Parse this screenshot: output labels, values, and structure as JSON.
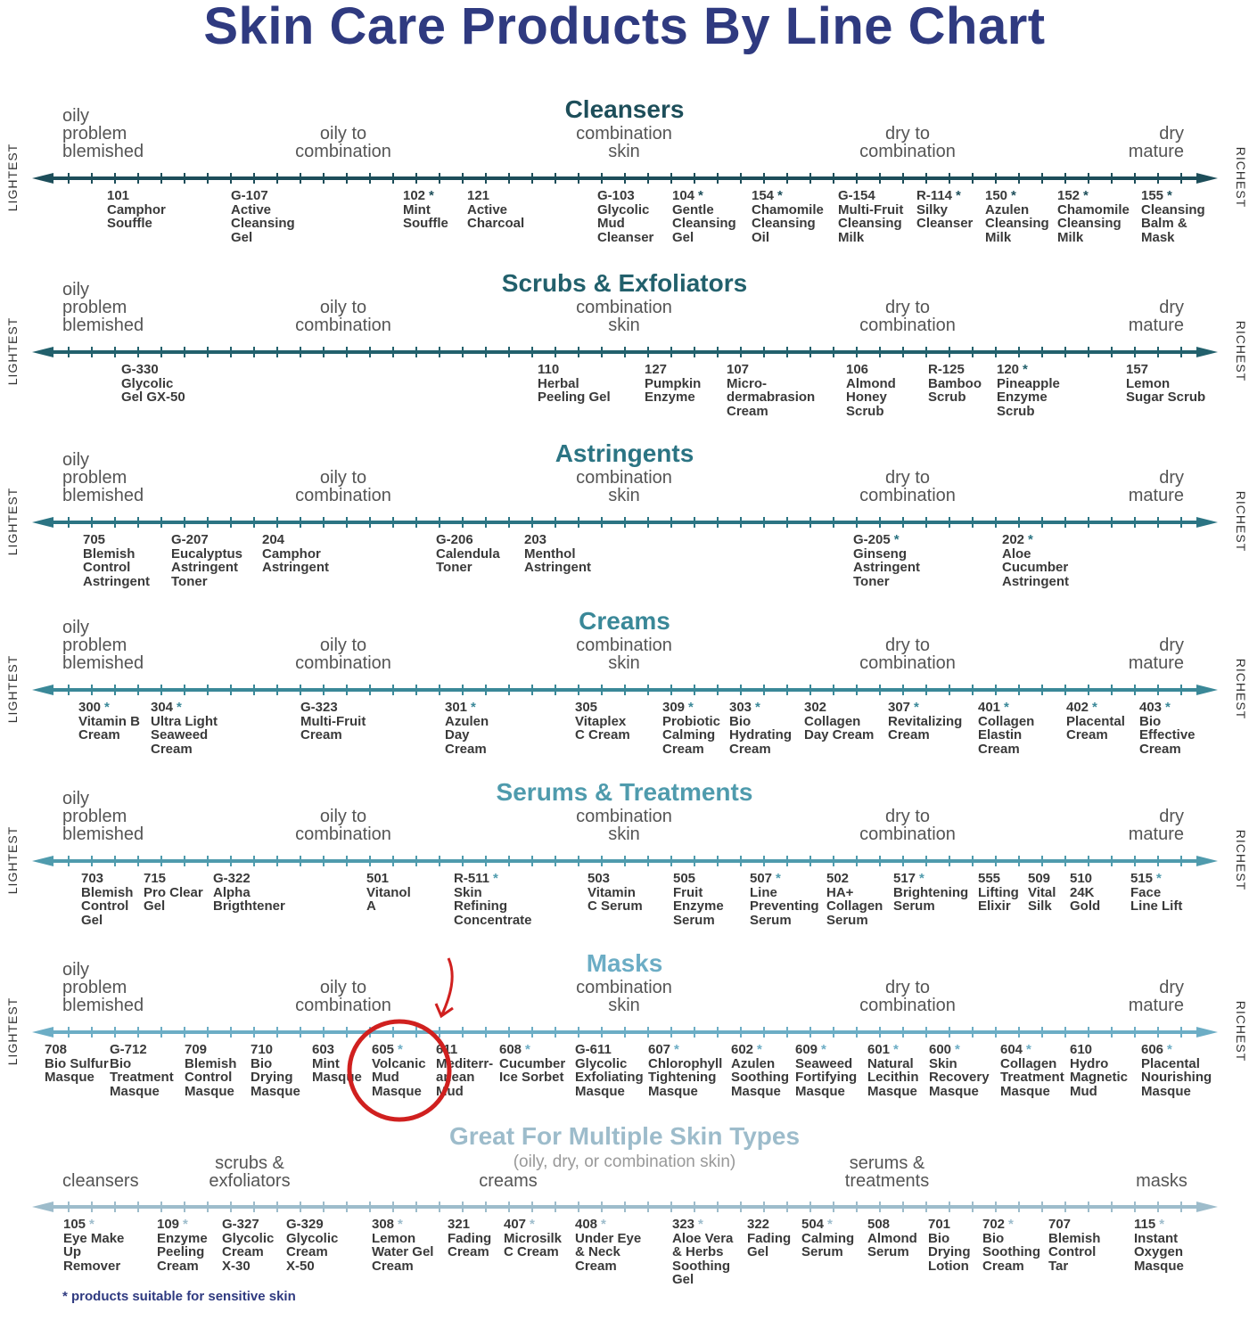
{
  "title": "Skin Care Products By Line Chart",
  "star_symbol": "*",
  "footnote": "* products suitable for sensitive skin",
  "side_labels": {
    "left": "LIGHTEST",
    "right": "RICHEST"
  },
  "skin_labels": {
    "oily": "oily\nproblem\nblemished",
    "oily_combo": "oily to\ncombination",
    "combo": "combination\nskin",
    "dry_combo": "dry to\ncombination",
    "dry": "dry\nmature"
  },
  "sections": [
    {
      "title": "Cleansers",
      "color": "#1d4e5a",
      "products": [
        {
          "code": "101",
          "star": false,
          "name": "Camphor\nSouffle"
        },
        {
          "code": "G-107",
          "star": false,
          "name": "Active\nCleansing\nGel"
        },
        {
          "code": "102",
          "star": true,
          "name": "Mint\nSouffle"
        },
        {
          "code": "121",
          "star": false,
          "name": "Active\nCharcoal"
        },
        {
          "code": "G-103",
          "star": false,
          "name": "Glycolic\nMud\nCleanser"
        },
        {
          "code": "104",
          "star": true,
          "name": "Gentle\nCleansing\nGel"
        },
        {
          "code": "154",
          "star": true,
          "name": "Chamomile\nCleansing\nOil"
        },
        {
          "code": "G-154",
          "star": false,
          "name": "Multi-Fruit\nCleansing\nMilk"
        },
        {
          "code": "R-114",
          "star": true,
          "name": "Silky\nCleanser"
        },
        {
          "code": "150",
          "star": true,
          "name": "Azulen\nCleansing\nMilk"
        },
        {
          "code": "152",
          "star": true,
          "name": "Chamomile\nCleansing\nMilk"
        },
        {
          "code": "155",
          "star": true,
          "name": "Cleansing\nBalm &\nMask"
        }
      ]
    },
    {
      "title": "Scrubs & Exfoliators",
      "color": "#22606c",
      "products": [
        {
          "code": "G-330",
          "star": false,
          "name": "Glycolic\nGel GX-50"
        },
        {
          "code": "110",
          "star": false,
          "name": "Herbal\nPeeling Gel"
        },
        {
          "code": "127",
          "star": false,
          "name": "Pumpkin\nEnzyme"
        },
        {
          "code": "107",
          "star": false,
          "name": "Micro-\ndermabrasion\nCream"
        },
        {
          "code": "106",
          "star": false,
          "name": "Almond\nHoney\nScrub"
        },
        {
          "code": "R-125",
          "star": false,
          "name": "Bamboo\nScrub"
        },
        {
          "code": "120",
          "star": true,
          "name": "Pineapple\nEnzyme\nScrub"
        },
        {
          "code": "157",
          "star": false,
          "name": "Lemon\nSugar Scrub"
        }
      ]
    },
    {
      "title": "Astringents",
      "color": "#2b7483",
      "products": [
        {
          "code": "705",
          "star": false,
          "name": "Blemish\nControl\nAstringent"
        },
        {
          "code": "G-207",
          "star": false,
          "name": "Eucalyptus\nAstringent\nToner"
        },
        {
          "code": "204",
          "star": false,
          "name": "Camphor\nAstringent"
        },
        {
          "code": "G-206",
          "star": false,
          "name": "Calendula\nToner"
        },
        {
          "code": "203",
          "star": false,
          "name": "Menthol\nAstringent"
        },
        {
          "code": "G-205",
          "star": true,
          "name": "Ginseng\nAstringent\nToner"
        },
        {
          "code": "202",
          "star": true,
          "name": "Aloe\nCucumber\nAstringent"
        }
      ]
    },
    {
      "title": "Creams",
      "color": "#3a8898",
      "products": [
        {
          "code": "300",
          "star": true,
          "name": "Vitamin B\nCream"
        },
        {
          "code": "304",
          "star": true,
          "name": "Ultra Light\nSeaweed\nCream"
        },
        {
          "code": "G-323",
          "star": false,
          "name": "Multi-Fruit\nCream"
        },
        {
          "code": "301",
          "star": true,
          "name": "Azulen\nDay\nCream"
        },
        {
          "code": "305",
          "star": false,
          "name": "Vitaplex\nC Cream"
        },
        {
          "code": "309",
          "star": true,
          "name": "Probiotic\nCalming\nCream"
        },
        {
          "code": "303",
          "star": true,
          "name": "Bio\nHydrating\nCream"
        },
        {
          "code": "302",
          "star": false,
          "name": "Collagen\nDay Cream"
        },
        {
          "code": "307",
          "star": true,
          "name": "Revitalizing\nCream"
        },
        {
          "code": "401",
          "star": true,
          "name": "Collagen\nElastin\nCream"
        },
        {
          "code": "402",
          "star": true,
          "name": "Placental\nCream"
        },
        {
          "code": "403",
          "star": true,
          "name": "Bio\nEffective\nCream"
        }
      ]
    },
    {
      "title": "Serums & Treatments",
      "color": "#4f9bad",
      "products": [
        {
          "code": "703",
          "star": false,
          "name": "Blemish\nControl\nGel"
        },
        {
          "code": "715",
          "star": false,
          "name": "Pro Clear\nGel"
        },
        {
          "code": "G-322",
          "star": false,
          "name": "Alpha\nBrigthtener"
        },
        {
          "code": "501",
          "star": false,
          "name": "Vitanol\nA"
        },
        {
          "code": "R-511",
          "star": true,
          "name": "Skin\nRefining\nConcentrate"
        },
        {
          "code": "503",
          "star": false,
          "name": "Vitamin\nC Serum"
        },
        {
          "code": "505",
          "star": false,
          "name": "Fruit\nEnzyme\nSerum"
        },
        {
          "code": "507",
          "star": true,
          "name": "Line\nPreventing\nSerum"
        },
        {
          "code": "502",
          "star": false,
          "name": "HA+\nCollagen\nSerum"
        },
        {
          "code": "517",
          "star": true,
          "name": "Brightening\nSerum"
        },
        {
          "code": "555",
          "star": false,
          "name": "Lifting\nElixir"
        },
        {
          "code": "509",
          "star": false,
          "name": "Vital\nSilk"
        },
        {
          "code": "510",
          "star": false,
          "name": "24K\nGold"
        },
        {
          "code": "515",
          "star": true,
          "name": "Face\nLine Lift"
        }
      ]
    },
    {
      "title": "Masks",
      "color": "#6cadc5",
      "products": [
        {
          "code": "708",
          "star": false,
          "name": "Bio Sulfur\nMasque"
        },
        {
          "code": "G-712",
          "star": false,
          "name": "Bio\nTreatment\nMasque"
        },
        {
          "code": "709",
          "star": false,
          "name": "Blemish\nControl\nMasque"
        },
        {
          "code": "710",
          "star": false,
          "name": "Bio\nDrying\nMasque"
        },
        {
          "code": "603",
          "star": false,
          "name": "Mint\nMasque"
        },
        {
          "code": "605",
          "star": true,
          "name": "Volcanic\nMud\nMasque"
        },
        {
          "code": "611",
          "star": false,
          "name": "Mediterr-\nanean\nMud"
        },
        {
          "code": "608",
          "star": true,
          "name": "Cucumber\nIce Sorbet"
        },
        {
          "code": "G-611",
          "star": false,
          "name": "Glycolic\nExfoliating\nMasque"
        },
        {
          "code": "607",
          "star": true,
          "name": "Chlorophyll\nTightening\nMasque"
        },
        {
          "code": "602",
          "star": true,
          "name": "Azulen\nSoothing\nMasque"
        },
        {
          "code": "609",
          "star": true,
          "name": "Seaweed\nFortifying\nMasque"
        },
        {
          "code": "601",
          "star": true,
          "name": "Natural\nLecithin\nMasque"
        },
        {
          "code": "600",
          "star": true,
          "name": "Skin\nRecovery\nMasque"
        },
        {
          "code": "604",
          "star": true,
          "name": "Collagen\nTreatment\nMasque"
        },
        {
          "code": "610",
          "star": false,
          "name": "Hydro\nMagnetic\nMud"
        },
        {
          "code": "606",
          "star": true,
          "name": "Placental\nNourishing\nMasque"
        }
      ]
    }
  ],
  "multiple": {
    "title": "Great For Multiple Skin Types",
    "subtitle": "(oily, dry, or combination skin)",
    "color": "#9dbccb",
    "labels": {
      "cleansers": "cleansers",
      "scrubs": "scrubs &\nexfoliators",
      "creams": "creams",
      "serums": "serums &\ntreatments",
      "masks": "masks"
    },
    "products": [
      {
        "code": "105",
        "star": true,
        "name": "Eye Make\nUp\nRemover"
      },
      {
        "code": "109",
        "star": true,
        "name": "Enzyme\nPeeling\nCream"
      },
      {
        "code": "G-327",
        "star": false,
        "name": "Glycolic\nCream\nX-30"
      },
      {
        "code": "G-329",
        "star": false,
        "name": "Glycolic\nCream\nX-50"
      },
      {
        "code": "308",
        "star": true,
        "name": "Lemon\nWater Gel\nCream"
      },
      {
        "code": "321",
        "star": false,
        "name": "Fading\nCream"
      },
      {
        "code": "407",
        "star": true,
        "name": "Microsilk\nC Cream"
      },
      {
        "code": "408",
        "star": true,
        "name": "Under Eye\n& Neck\nCream"
      },
      {
        "code": "323",
        "star": true,
        "name": "Aloe Vera\n& Herbs\nSoothing\nGel"
      },
      {
        "code": "322",
        "star": false,
        "name": "Fading\nGel"
      },
      {
        "code": "504",
        "star": true,
        "name": "Calming\nSerum"
      },
      {
        "code": "508",
        "star": false,
        "name": "Almond\nSerum"
      },
      {
        "code": "701",
        "star": false,
        "name": "Bio\nDrying\nLotion"
      },
      {
        "code": "702",
        "star": true,
        "name": "Bio\nSoothing\nCream"
      },
      {
        "code": "707",
        "star": false,
        "name": "Blemish\nControl\nTar"
      },
      {
        "code": "115",
        "star": true,
        "name": "Instant\nOxygen\nMasque"
      }
    ]
  },
  "annotation": {
    "color": "#d0201f",
    "highlighted_product": "605"
  }
}
